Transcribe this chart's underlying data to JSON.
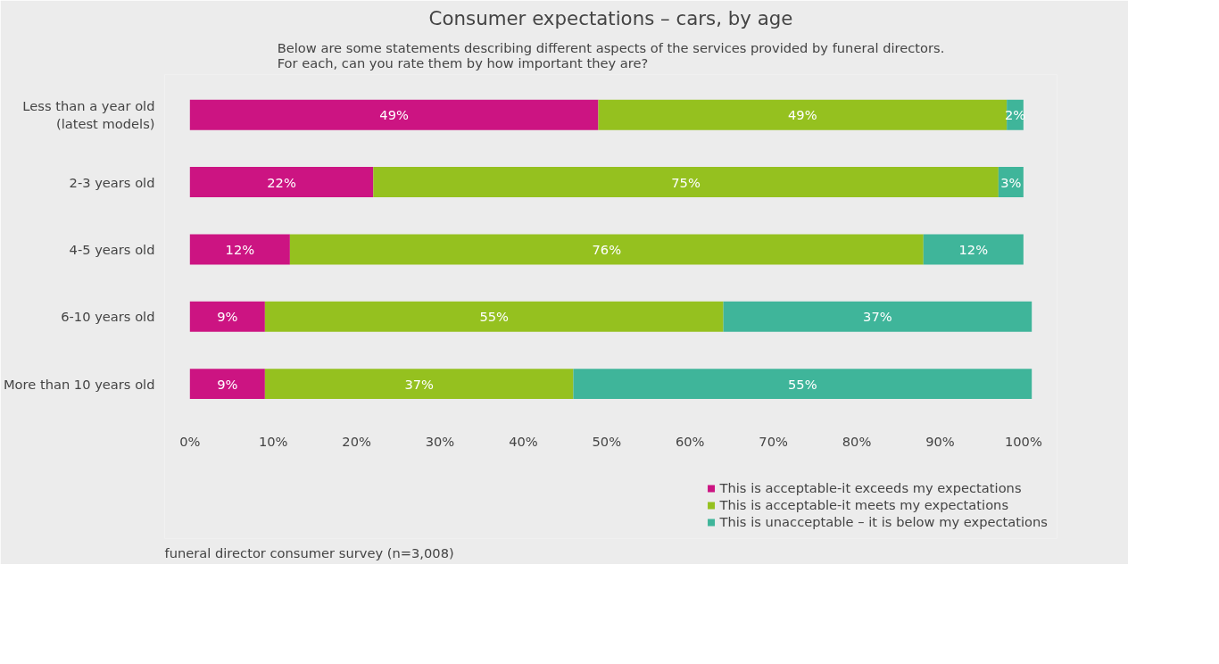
{
  "chart_data": {
    "type": "bar",
    "orientation": "horizontal",
    "stacked": true,
    "title": "Consumer expectations – cars, by age",
    "subtitle": "Below are some statements describing different aspects of the services provided by funeral directors.  For each, can you rate them by how important they are?",
    "categories": [
      "Less than a year old\n(latest models)",
      "2-3 years old",
      "4-5 years old",
      "6-10 years old",
      "More than 10 years old"
    ],
    "series": [
      {
        "name": "This is acceptable-it exceeds my expectations",
        "color": "#cc1482",
        "values": [
          49,
          22,
          12,
          9,
          9
        ],
        "value_labels": [
          "49%",
          "22%",
          "12%",
          "9%",
          "9%"
        ]
      },
      {
        "name": "This is acceptable-it meets my expectations",
        "color": "#95c11f",
        "values": [
          49,
          75,
          76,
          55,
          37
        ],
        "value_labels": [
          "49%",
          "75%",
          "76%",
          "55%",
          "37%"
        ]
      },
      {
        "name": "This is unacceptable – it is below my expectations",
        "color": "#3fb59a",
        "values": [
          2,
          3,
          12,
          37,
          55
        ],
        "value_labels": [
          "2%",
          "3%",
          "12%",
          "37%",
          "55%"
        ]
      }
    ],
    "xlim": [
      0,
      101
    ],
    "xticks": [
      {
        "value": 0,
        "label": "0%"
      },
      {
        "value": 10,
        "label": "10%"
      },
      {
        "value": 20,
        "label": "20%"
      },
      {
        "value": 30,
        "label": "30%"
      },
      {
        "value": 40,
        "label": "40%"
      },
      {
        "value": 50,
        "label": "50%"
      },
      {
        "value": 60,
        "label": "60%"
      },
      {
        "value": 70,
        "label": "70%"
      },
      {
        "value": 80,
        "label": "80%"
      },
      {
        "value": 90,
        "label": "90%"
      },
      {
        "value": 100,
        "label": "100%"
      }
    ],
    "grid": false,
    "legend": "bottom right",
    "annotations": [
      "funeral director consumer survey (n=3,008)"
    ]
  }
}
